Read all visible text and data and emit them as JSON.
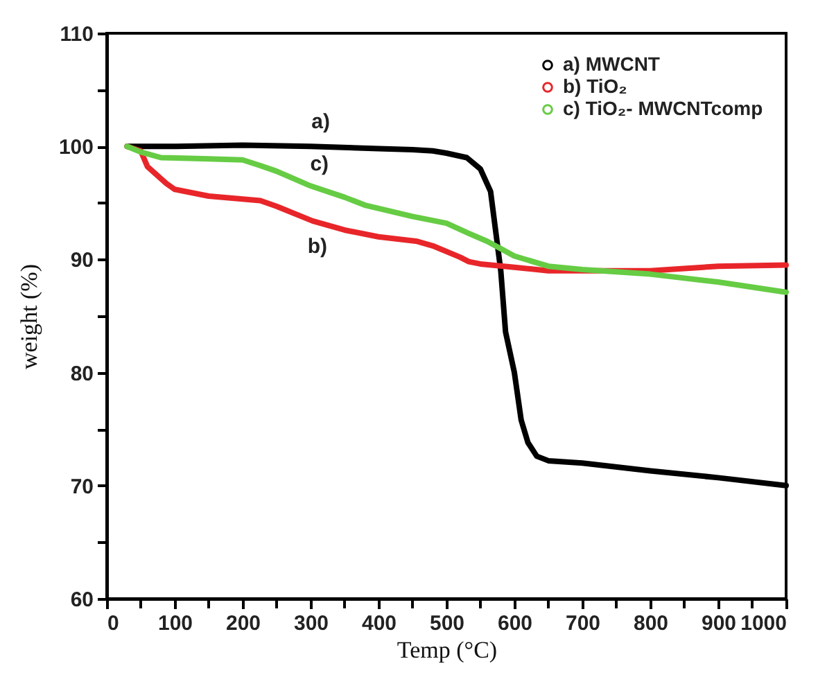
{
  "chart_data": {
    "type": "line",
    "xlabel": "Temp (°C)",
    "ylabel": "weight (%)",
    "xlim": [
      0,
      1000
    ],
    "ylim": [
      60,
      110
    ],
    "xticks": [
      0,
      {
        "value": 50,
        "label": null
      },
      100,
      {
        "value": 150,
        "label": null
      },
      200,
      {
        "value": 250,
        "label": null
      },
      300,
      {
        "value": 350,
        "label": null
      },
      400,
      {
        "value": 450,
        "label": null
      },
      500,
      {
        "value": 550,
        "label": null
      },
      600,
      {
        "value": 650,
        "label": null
      },
      700,
      {
        "value": 750,
        "label": null
      },
      800,
      {
        "value": 850,
        "label": null
      },
      900,
      {
        "value": 950,
        "label": null
      },
      1000
    ],
    "yticks": [
      60,
      {
        "value": 65,
        "label": null
      },
      70,
      {
        "value": 75,
        "label": null
      },
      80,
      {
        "value": 85,
        "label": null
      },
      90,
      {
        "value": 95,
        "label": null
      },
      100,
      {
        "value": 105,
        "label": null
      },
      110
    ],
    "grid": false,
    "legend": "top right",
    "marker": "none",
    "line_style": "solid",
    "series": [
      {
        "name": "a) MWCNT",
        "color": "#000000",
        "x": [
          30,
          100,
          200,
          300,
          400,
          450,
          480,
          500,
          530,
          550,
          565,
          580,
          587,
          600,
          610,
          620,
          633,
          650,
          700,
          800,
          900,
          1000
        ],
        "values": [
          100,
          100,
          100.1,
          100,
          99.8,
          99.7,
          99.6,
          99.4,
          99,
          98,
          96,
          89,
          83.6,
          80,
          75.8,
          73.8,
          72.6,
          72.2,
          72,
          71.3,
          70.7,
          70
        ]
      },
      {
        "name": "b) TiO₂",
        "color": "#e8262a",
        "x": [
          30,
          50,
          60,
          88,
          100,
          150,
          226,
          250,
          303,
          350,
          400,
          457,
          480,
          520,
          533,
          550,
          600,
          650,
          700,
          800,
          850,
          900,
          1000
        ],
        "values": [
          100,
          99.6,
          98.2,
          96.7,
          96.2,
          95.6,
          95.2,
          94.7,
          93.4,
          92.6,
          92,
          91.6,
          91.2,
          90.2,
          89.8,
          89.6,
          89.3,
          89,
          89,
          89,
          89.2,
          89.4,
          89.5
        ]
      },
      {
        "name": "c) TiO₂- MWCNTcomp",
        "color": "#66cc44",
        "x": [
          30,
          50,
          80,
          150,
          200,
          226,
          250,
          300,
          350,
          380,
          450,
          500,
          533,
          560,
          600,
          650,
          700,
          800,
          900,
          1000
        ],
        "values": [
          100,
          99.5,
          99,
          98.9,
          98.8,
          98.3,
          97.8,
          96.5,
          95.5,
          94.8,
          93.8,
          93.2,
          92.3,
          91.6,
          90.3,
          89.4,
          89.1,
          88.7,
          88,
          87.1
        ]
      }
    ],
    "annotations": [
      {
        "text": "a)",
        "x": 315,
        "y": 100
      },
      {
        "text": "c)",
        "x": 313,
        "y": 96.3
      },
      {
        "text": "b)",
        "x": 310,
        "y": 93.3
      }
    ]
  }
}
